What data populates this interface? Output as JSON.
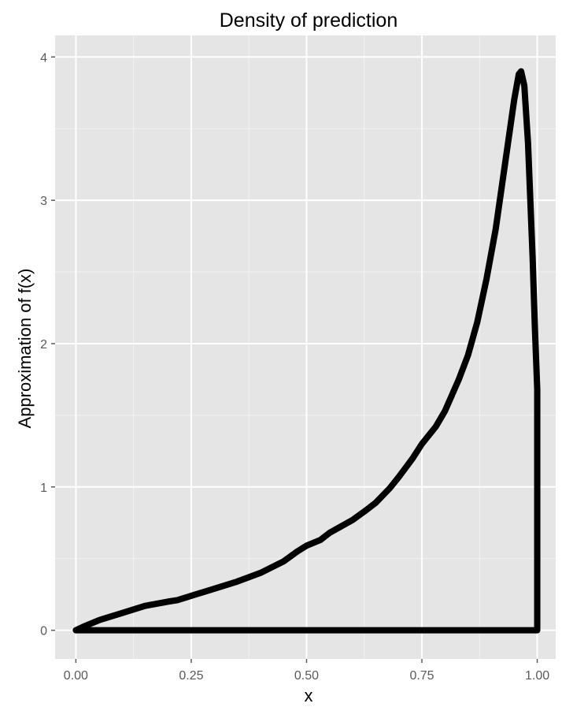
{
  "chart_data": {
    "type": "line",
    "title": "Density of prediction",
    "xlabel": "x",
    "ylabel": "Approximation of f(x)",
    "xlim": [
      -0.045,
      1.04
    ],
    "ylim": [
      -0.2,
      4.15
    ],
    "x_ticks": [
      0.0,
      0.25,
      0.5,
      0.75,
      1.0
    ],
    "x_tick_labels": [
      "0.00",
      "0.25",
      "0.50",
      "0.75",
      "1.00"
    ],
    "y_ticks": [
      0,
      1,
      2,
      3,
      4
    ],
    "y_tick_labels": [
      "0",
      "1",
      "2",
      "3",
      "4"
    ],
    "grid": true,
    "legend": "none",
    "colors": {
      "panel": "#e5e5e5",
      "grid_major": "#ffffff",
      "grid_minor": "#f2f2f2",
      "line": "#000000",
      "tick": "#5a5a5a"
    },
    "series": [
      {
        "closed": true,
        "points": [
          [
            0.0,
            0.0
          ],
          [
            0.02,
            0.03
          ],
          [
            0.05,
            0.07
          ],
          [
            0.1,
            0.12
          ],
          [
            0.15,
            0.17
          ],
          [
            0.2,
            0.2
          ],
          [
            0.22,
            0.21
          ],
          [
            0.25,
            0.24
          ],
          [
            0.3,
            0.29
          ],
          [
            0.35,
            0.34
          ],
          [
            0.4,
            0.4
          ],
          [
            0.45,
            0.48
          ],
          [
            0.48,
            0.55
          ],
          [
            0.5,
            0.59
          ],
          [
            0.53,
            0.63
          ],
          [
            0.55,
            0.68
          ],
          [
            0.6,
            0.77
          ],
          [
            0.63,
            0.84
          ],
          [
            0.65,
            0.89
          ],
          [
            0.68,
            0.99
          ],
          [
            0.7,
            1.07
          ],
          [
            0.73,
            1.2
          ],
          [
            0.75,
            1.3
          ],
          [
            0.78,
            1.42
          ],
          [
            0.8,
            1.53
          ],
          [
            0.83,
            1.75
          ],
          [
            0.85,
            1.92
          ],
          [
            0.87,
            2.15
          ],
          [
            0.89,
            2.45
          ],
          [
            0.91,
            2.8
          ],
          [
            0.93,
            3.25
          ],
          [
            0.95,
            3.7
          ],
          [
            0.96,
            3.88
          ],
          [
            0.965,
            3.9
          ],
          [
            0.972,
            3.8
          ],
          [
            0.98,
            3.4
          ],
          [
            0.99,
            2.6
          ],
          [
            0.995,
            2.1
          ],
          [
            1.0,
            1.68
          ],
          [
            1.0,
            0.0
          ],
          [
            0.0,
            0.0
          ]
        ]
      }
    ]
  }
}
